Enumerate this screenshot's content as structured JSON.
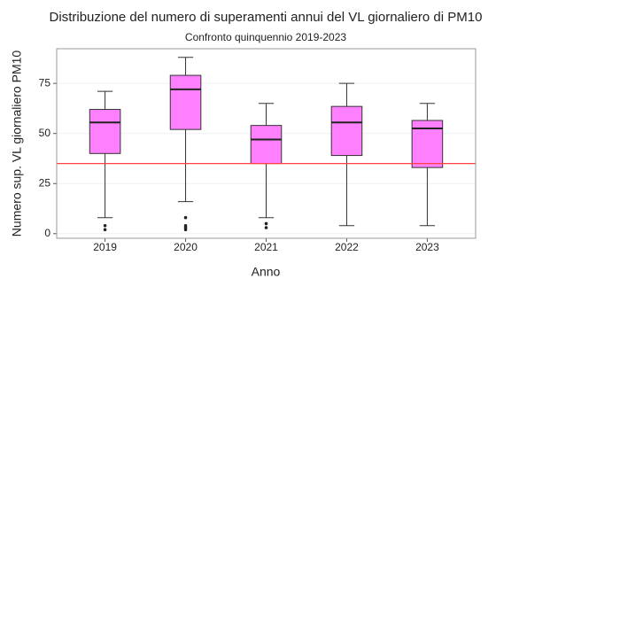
{
  "chart_data": {
    "type": "box",
    "title": "Distribuzione del numero di superamenti annui del VL giornaliero di PM10",
    "subtitle": "Confronto quinquennio 2019-2023",
    "x_label": "Anno",
    "y_label": "Numero sup. VL giornaliero PM10",
    "categories": [
      "2019",
      "2020",
      "2021",
      "2022",
      "2023"
    ],
    "boxes": [
      {
        "min": 8,
        "q1": 40,
        "median": 55.5,
        "q3": 62,
        "max": 71,
        "outliers": [
          4,
          2
        ]
      },
      {
        "min": 16,
        "q1": 52,
        "median": 72,
        "q3": 79,
        "max": 88,
        "outliers": [
          8,
          4,
          3,
          2
        ]
      },
      {
        "min": 8,
        "q1": 35,
        "median": 47,
        "q3": 54,
        "max": 65,
        "outliers": [
          5,
          3
        ]
      },
      {
        "min": 4,
        "q1": 39,
        "median": 55.5,
        "q3": 63.5,
        "max": 75,
        "outliers": []
      },
      {
        "min": 4,
        "q1": 33,
        "median": 52.5,
        "q3": 56.5,
        "max": 65,
        "outliers": []
      }
    ],
    "color": "#ff80ff",
    "reference_line": {
      "value": 35,
      "color": "#ff4040"
    },
    "ylim": [
      -2.3,
      92.3
    ],
    "yticks": [
      0,
      25,
      50,
      75
    ],
    "grid": true
  }
}
